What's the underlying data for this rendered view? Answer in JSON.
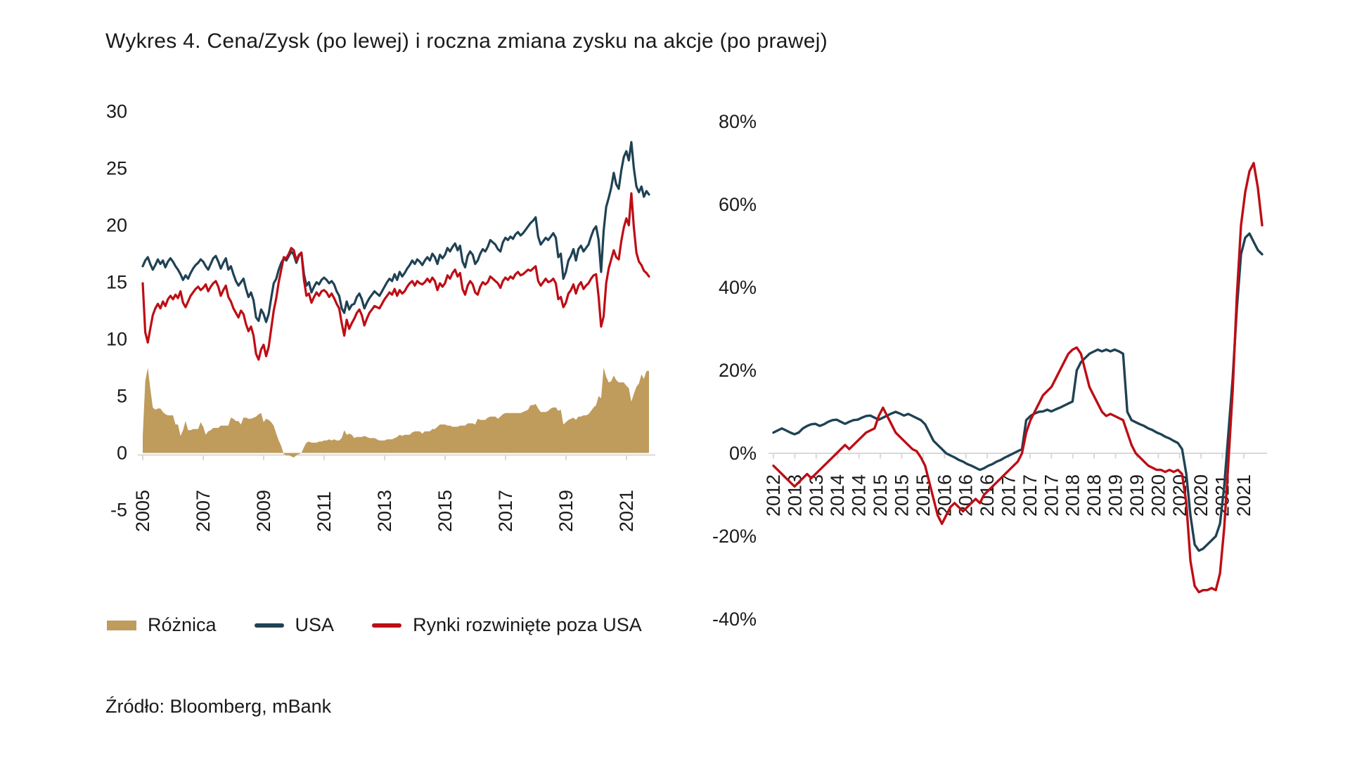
{
  "title": "Wykres 4. Cena/Zysk (po lewej) i roczna zmiana zysku na akcje (po prawej)",
  "source": "Źródło: Bloomberg, mBank",
  "colors": {
    "usa": "#1f4254",
    "ex_usa": "#be0d15",
    "roznica": "#bf9b5c",
    "axis": "#d9d9d9",
    "text": "#1a1a1a"
  },
  "legend": {
    "items": [
      {
        "label": "Różnica",
        "swatch": "area",
        "color_key": "roznica"
      },
      {
        "label": "USA",
        "swatch": "line",
        "color_key": "usa"
      },
      {
        "label": "Rynki rozwinięte poza USA",
        "swatch": "line",
        "color_key": "ex_usa"
      }
    ]
  },
  "chart_data": [
    {
      "type": "line",
      "title": "Cena/Zysk (po lewej)",
      "x_unit": "month",
      "x_start": "2005-01",
      "x_end": "2021-10",
      "x_tick_labels": [
        "2005",
        "2007",
        "2009",
        "2011",
        "2013",
        "2015",
        "2017",
        "2019",
        "2021"
      ],
      "ylim": [
        -5,
        30
      ],
      "grid": "off",
      "legend_position": "bottom",
      "y_ticks": [
        {
          "label": "30",
          "value": 30
        },
        {
          "label": "25",
          "value": 25
        },
        {
          "label": "20",
          "value": 20
        },
        {
          "label": "15",
          "value": 15
        },
        {
          "label": "10",
          "value": 10
        },
        {
          "label": "5",
          "value": 5
        },
        {
          "label": "0",
          "value": 0
        },
        {
          "label": "-5",
          "value": -5
        }
      ],
      "series": [
        {
          "name": "USA",
          "color_key": "usa",
          "render": "line",
          "values": [
            16.4,
            16.9,
            17.2,
            16.6,
            16.1,
            16.5,
            17.0,
            16.6,
            16.9,
            16.3,
            16.8,
            17.1,
            16.8,
            16.4,
            16.1,
            15.7,
            15.2,
            15.6,
            15.3,
            15.8,
            16.2,
            16.5,
            16.7,
            17.0,
            16.8,
            16.4,
            16.1,
            16.6,
            17.1,
            17.3,
            16.8,
            16.2,
            16.7,
            17.1,
            16.1,
            16.4,
            15.7,
            15.1,
            14.7,
            15.0,
            15.3,
            14.4,
            13.7,
            14.1,
            13.4,
            11.9,
            11.6,
            12.6,
            12.2,
            11.5,
            12.2,
            13.6,
            14.9,
            15.3,
            16.1,
            16.7,
            17.1,
            16.9,
            17.3,
            17.7,
            17.4,
            16.7,
            17.3,
            17.6,
            15.7,
            14.7,
            15.0,
            14.1,
            14.6,
            15.0,
            14.8,
            15.2,
            15.4,
            15.2,
            14.9,
            15.1,
            14.8,
            14.2,
            13.8,
            12.7,
            12.3,
            13.3,
            12.6,
            13.0,
            13.1,
            13.7,
            14.0,
            13.5,
            12.7,
            13.2,
            13.6,
            13.9,
            14.2,
            14.0,
            13.8,
            14.2,
            14.6,
            15.0,
            15.3,
            15.1,
            15.7,
            15.2,
            15.9,
            15.5,
            15.8,
            16.2,
            16.5,
            16.9,
            16.6,
            17.0,
            16.8,
            16.5,
            16.9,
            17.2,
            16.9,
            17.5,
            17.2,
            16.6,
            17.4,
            17.1,
            17.4,
            18.0,
            17.7,
            18.1,
            18.4,
            17.8,
            18.2,
            16.8,
            16.3,
            17.3,
            17.7,
            17.4,
            16.6,
            16.9,
            17.5,
            17.9,
            17.7,
            18.1,
            18.7,
            18.5,
            18.3,
            17.9,
            17.7,
            18.5,
            18.9,
            18.7,
            19.0,
            18.8,
            19.2,
            19.4,
            19.1,
            19.3,
            19.6,
            19.9,
            20.2,
            20.4,
            20.7,
            19.0,
            18.3,
            18.6,
            18.9,
            18.7,
            19.0,
            19.3,
            18.9,
            17.2,
            17.5,
            15.3,
            15.9,
            16.9,
            17.3,
            17.9,
            16.9,
            17.9,
            18.2,
            17.7,
            18.0,
            18.3,
            19.0,
            19.6,
            19.9,
            18.7,
            15.9,
            19.5,
            21.6,
            22.4,
            23.3,
            24.6,
            23.6,
            23.2,
            24.8,
            26.0,
            26.5,
            25.7,
            27.3,
            25.0,
            23.4,
            22.9,
            23.4,
            22.5,
            23.0,
            22.7
          ]
        },
        {
          "name": "Rynki rozwinięte poza USA",
          "color_key": "ex_usa",
          "render": "line",
          "values": [
            14.9,
            10.6,
            9.7,
            10.9,
            12.1,
            12.7,
            13.1,
            12.7,
            13.3,
            12.9,
            13.5,
            13.8,
            13.5,
            13.9,
            13.6,
            14.2,
            13.2,
            12.8,
            13.3,
            13.8,
            14.1,
            14.4,
            14.6,
            14.3,
            14.5,
            14.8,
            14.2,
            14.6,
            14.9,
            15.1,
            14.6,
            13.8,
            14.3,
            14.7,
            13.7,
            13.3,
            12.7,
            12.3,
            11.9,
            12.5,
            12.2,
            11.3,
            10.7,
            11.1,
            10.3,
            8.7,
            8.2,
            9.1,
            9.5,
            8.5,
            9.3,
            10.9,
            12.5,
            13.6,
            15.0,
            16.1,
            17.2,
            17.1,
            17.5,
            18.0,
            17.8,
            16.9,
            17.4,
            17.6,
            15.2,
            13.8,
            14.0,
            13.2,
            13.7,
            14.1,
            13.8,
            14.2,
            14.3,
            14.1,
            13.7,
            14.0,
            13.6,
            13.1,
            12.7,
            11.4,
            10.3,
            11.7,
            10.9,
            11.4,
            11.8,
            12.3,
            12.6,
            12.1,
            11.2,
            11.8,
            12.3,
            12.6,
            12.9,
            12.8,
            12.7,
            13.1,
            13.5,
            13.8,
            14.1,
            13.9,
            14.4,
            13.8,
            14.3,
            14.0,
            14.2,
            14.6,
            14.9,
            15.1,
            14.7,
            15.1,
            14.9,
            14.8,
            15.0,
            15.3,
            15.0,
            15.4,
            15.1,
            14.3,
            14.9,
            14.6,
            14.9,
            15.6,
            15.3,
            15.8,
            16.1,
            15.5,
            15.8,
            14.4,
            13.9,
            14.7,
            15.1,
            14.8,
            14.1,
            13.9,
            14.6,
            15.0,
            14.8,
            15.0,
            15.5,
            15.3,
            15.1,
            14.9,
            14.5,
            15.1,
            15.4,
            15.2,
            15.5,
            15.3,
            15.7,
            15.9,
            15.6,
            15.7,
            15.9,
            16.1,
            16.0,
            16.2,
            16.4,
            15.1,
            14.7,
            15.0,
            15.3,
            15.0,
            15.1,
            15.3,
            14.9,
            13.5,
            13.7,
            12.8,
            13.2,
            14.0,
            14.3,
            14.8,
            14.0,
            14.7,
            15.0,
            14.4,
            14.7,
            14.9,
            15.3,
            15.6,
            15.7,
            13.7,
            11.1,
            12.0,
            14.9,
            16.2,
            17.0,
            17.8,
            17.2,
            17.0,
            18.6,
            19.8,
            20.6,
            20.0,
            22.8,
            19.8,
            17.6,
            16.8,
            16.5,
            16.0,
            15.8,
            15.5
          ]
        },
        {
          "name": "Różnica",
          "color_key": "roznica",
          "render": "area",
          "derived": "USA minus Rynki rozwinięte poza USA"
        }
      ]
    },
    {
      "type": "line",
      "title": "roczna zmiana zysku na akcje (po prawej)",
      "x_unit": "month",
      "x_start": "2012-01",
      "x_end": "2021-09",
      "x_tick_labels": [
        "2012",
        "2013",
        "2013",
        "2014",
        "2014",
        "2015",
        "2015",
        "2015",
        "2016",
        "2016",
        "2016",
        "2017",
        "2017",
        "2017",
        "2018",
        "2018",
        "2019",
        "2019",
        "2020",
        "2020",
        "2020",
        "2021",
        "2021"
      ],
      "ylim": [
        -40,
        80
      ],
      "grid": "off",
      "y_ticks": [
        {
          "label": "80%",
          "value": 80
        },
        {
          "label": "60%",
          "value": 60
        },
        {
          "label": "40%",
          "value": 40
        },
        {
          "label": "20%",
          "value": 20
        },
        {
          "label": "0%",
          "value": 0
        },
        {
          "label": "-20%",
          "value": -20
        },
        {
          "label": "-40%",
          "value": -40
        }
      ],
      "series": [
        {
          "name": "USA",
          "color_key": "usa",
          "render": "line",
          "values": [
            5.0,
            5.5,
            6.0,
            5.5,
            5.0,
            4.6,
            5.0,
            6.0,
            6.6,
            7.0,
            7.1,
            6.6,
            7.0,
            7.6,
            8.0,
            8.1,
            7.6,
            7.1,
            7.6,
            8.0,
            8.1,
            8.6,
            9.0,
            9.1,
            8.6,
            8.1,
            8.6,
            9.1,
            9.6,
            10.0,
            9.6,
            9.1,
            9.5,
            9.0,
            8.5,
            8.0,
            7.0,
            5.0,
            3.0,
            2.0,
            1.0,
            0.0,
            -0.5,
            -1.0,
            -1.6,
            -2.0,
            -2.6,
            -3.0,
            -3.5,
            -4.0,
            -3.6,
            -3.0,
            -2.6,
            -2.0,
            -1.6,
            -1.0,
            -0.5,
            0.0,
            0.5,
            1.0,
            8.0,
            9.0,
            9.6,
            10.0,
            10.1,
            10.5,
            10.1,
            10.6,
            11.0,
            11.5,
            12.0,
            12.5,
            20.0,
            22.0,
            23.0,
            24.0,
            24.5,
            25.0,
            24.6,
            25.0,
            24.6,
            25.0,
            24.6,
            24.0,
            10.0,
            8.0,
            7.5,
            7.0,
            6.6,
            6.0,
            5.6,
            5.0,
            4.6,
            4.0,
            3.6,
            3.0,
            2.5,
            1.0,
            -5.0,
            -15.0,
            -22.0,
            -23.5,
            -23.0,
            -22.0,
            -21.0,
            -20.0,
            -17.0,
            -8.0,
            5.0,
            18.0,
            35.0,
            48.0,
            52.0,
            53.0,
            51.0,
            49.0,
            48.0
          ]
        },
        {
          "name": "Rynki rozwinięte poza USA",
          "color_key": "ex_usa",
          "render": "line",
          "values": [
            -3.0,
            -4.0,
            -5.0,
            -6.0,
            -7.0,
            -8.0,
            -7.0,
            -6.0,
            -5.0,
            -6.0,
            -5.0,
            -4.0,
            -3.0,
            -2.0,
            -1.0,
            0.0,
            1.0,
            2.0,
            1.0,
            2.0,
            3.0,
            4.0,
            5.0,
            5.5,
            6.0,
            9.0,
            11.0,
            9.0,
            7.0,
            5.0,
            4.0,
            3.0,
            2.0,
            1.0,
            0.5,
            -1.0,
            -3.0,
            -7.0,
            -11.0,
            -15.0,
            -17.0,
            -15.0,
            -13.0,
            -12.0,
            -13.0,
            -14.0,
            -13.0,
            -12.0,
            -11.0,
            -12.0,
            -10.0,
            -9.0,
            -8.0,
            -7.0,
            -6.0,
            -5.0,
            -4.0,
            -3.0,
            -2.0,
            0.0,
            5.0,
            8.0,
            10.0,
            12.0,
            14.0,
            15.0,
            16.0,
            18.0,
            20.0,
            22.0,
            24.0,
            25.0,
            25.5,
            24.0,
            20.0,
            16.0,
            14.0,
            12.0,
            10.0,
            9.0,
            9.5,
            9.0,
            8.5,
            8.0,
            5.0,
            2.0,
            0.0,
            -1.0,
            -2.0,
            -3.0,
            -3.5,
            -4.0,
            -4.0,
            -4.5,
            -4.0,
            -4.5,
            -4.0,
            -5.0,
            -12.0,
            -26.0,
            -32.0,
            -33.5,
            -33.0,
            -33.0,
            -32.5,
            -33.0,
            -29.0,
            -18.0,
            -2.0,
            15.0,
            38.0,
            55.0,
            63.0,
            68.0,
            70.0,
            64.0,
            55.0
          ]
        }
      ]
    }
  ]
}
